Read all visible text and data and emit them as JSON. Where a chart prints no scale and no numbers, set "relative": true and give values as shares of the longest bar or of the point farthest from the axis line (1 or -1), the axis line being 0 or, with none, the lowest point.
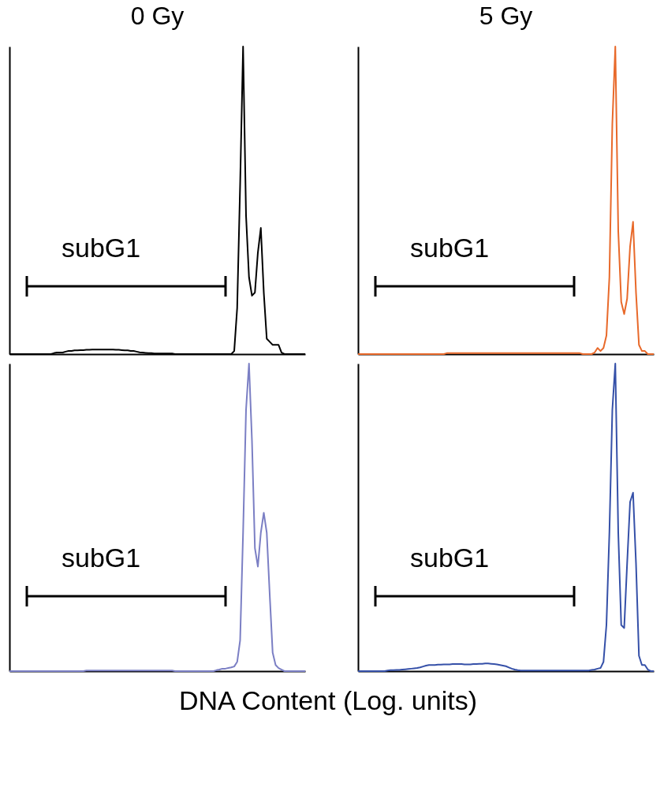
{
  "chart_data": [
    {
      "type": "line",
      "title": "0 Gy",
      "relative": true,
      "tick_labels": false,
      "annotations": [
        "subG1"
      ],
      "categories": [
        null,
        null,
        null,
        null,
        null,
        null,
        null,
        null,
        null,
        null,
        null,
        null,
        null,
        null,
        null,
        null,
        null,
        null,
        null,
        null,
        null,
        null,
        null,
        null,
        null,
        null,
        null,
        null,
        null,
        null,
        null,
        null,
        null,
        null,
        null,
        null,
        null,
        null,
        null,
        null,
        null,
        null,
        null,
        null,
        null,
        null,
        null,
        null,
        null,
        null,
        null,
        null,
        null,
        null,
        null,
        null,
        null,
        null,
        null,
        null,
        null,
        null,
        null,
        null,
        null,
        null,
        null,
        null,
        null,
        null,
        null,
        null,
        null,
        null,
        null,
        null,
        null,
        null,
        null,
        null,
        null,
        null,
        null,
        null,
        null,
        null,
        null,
        null,
        null,
        null,
        null,
        null,
        null,
        null,
        null,
        null,
        null,
        null,
        null,
        null,
        null
      ],
      "series": [
        {
          "color": "#000000",
          "values": [
            0,
            0,
            0,
            0,
            0,
            0,
            0,
            0,
            0,
            0,
            0,
            0,
            0,
            0,
            0,
            0.003,
            0.005,
            0.005,
            0.005,
            0.008,
            0.01,
            0.01,
            0.012,
            0.012,
            0.013,
            0.013,
            0.014,
            0.014,
            0.015,
            0.015,
            0.015,
            0.015,
            0.015,
            0.015,
            0.015,
            0.015,
            0.014,
            0.014,
            0.013,
            0.012,
            0.012,
            0.01,
            0.01,
            0.008,
            0.006,
            0.005,
            0.004,
            0.003,
            0.003,
            0.002,
            0.002,
            0.002,
            0.002,
            0.002,
            0.002,
            0.002,
            0,
            0,
            0,
            0,
            0,
            0,
            0,
            0,
            0,
            0,
            0,
            0,
            0,
            0,
            0,
            0,
            0,
            0,
            0,
            0,
            0.01,
            0.15,
            0.55,
            1,
            0.45,
            0.25,
            0.19,
            0.2,
            0.33,
            0.41,
            0.2,
            0.05,
            0.04,
            0.03,
            0.03,
            0.03,
            0.005,
            0,
            0,
            0,
            0,
            0,
            0,
            0,
            0
          ]
        }
      ]
    },
    {
      "type": "line",
      "title": "5 Gy",
      "relative": true,
      "tick_labels": false,
      "annotations": [
        "subG1"
      ],
      "categories": [
        null,
        null,
        null,
        null,
        null,
        null,
        null,
        null,
        null,
        null,
        null,
        null,
        null,
        null,
        null,
        null,
        null,
        null,
        null,
        null,
        null,
        null,
        null,
        null,
        null,
        null,
        null,
        null,
        null,
        null,
        null,
        null,
        null,
        null,
        null,
        null,
        null,
        null,
        null,
        null,
        null,
        null,
        null,
        null,
        null,
        null,
        null,
        null,
        null,
        null,
        null,
        null,
        null,
        null,
        null,
        null,
        null,
        null,
        null,
        null,
        null,
        null,
        null,
        null,
        null,
        null,
        null,
        null,
        null,
        null,
        null,
        null,
        null,
        null,
        null,
        null,
        null,
        null,
        null,
        null,
        null,
        null,
        null,
        null,
        null,
        null,
        null,
        null,
        null,
        null,
        null,
        null,
        null,
        null,
        null,
        null,
        null,
        null,
        null,
        null,
        null
      ],
      "series": [
        {
          "color": "#e8692a",
          "values": [
            0,
            0,
            0,
            0,
            0,
            0,
            0,
            0,
            0,
            0,
            0,
            0,
            0,
            0,
            0,
            0,
            0,
            0,
            0,
            0,
            0,
            0,
            0,
            0,
            0,
            0,
            0,
            0,
            0,
            0,
            0.003,
            0.003,
            0.003,
            0.003,
            0.003,
            0.003,
            0.003,
            0.003,
            0.003,
            0.003,
            0.003,
            0.003,
            0.003,
            0.003,
            0.003,
            0.003,
            0.003,
            0.003,
            0.003,
            0.003,
            0.003,
            0.003,
            0.003,
            0.003,
            0.003,
            0.003,
            0.003,
            0.003,
            0.003,
            0.003,
            0.003,
            0.003,
            0.003,
            0.003,
            0.003,
            0.003,
            0.003,
            0.003,
            0.003,
            0.003,
            0.003,
            0.003,
            0.003,
            0.003,
            0.003,
            0.003,
            0,
            0,
            0,
            0,
            0.005,
            0.02,
            0.01,
            0.02,
            0.06,
            0.25,
            0.75,
            1,
            0.4,
            0.17,
            0.13,
            0.18,
            0.35,
            0.43,
            0.2,
            0.03,
            0.01,
            0.01,
            0,
            0,
            0
          ]
        }
      ]
    },
    {
      "type": "line",
      "relative": true,
      "tick_labels": false,
      "annotations": [
        "subG1"
      ],
      "xlabel": "DNA Content (Log. units)",
      "categories": [
        null,
        null,
        null,
        null,
        null,
        null,
        null,
        null,
        null,
        null,
        null,
        null,
        null,
        null,
        null,
        null,
        null,
        null,
        null,
        null,
        null,
        null,
        null,
        null,
        null,
        null,
        null,
        null,
        null,
        null,
        null,
        null,
        null,
        null,
        null,
        null,
        null,
        null,
        null,
        null,
        null,
        null,
        null,
        null,
        null,
        null,
        null,
        null,
        null,
        null,
        null,
        null,
        null,
        null,
        null,
        null,
        null,
        null,
        null,
        null,
        null,
        null,
        null,
        null,
        null,
        null,
        null,
        null,
        null,
        null,
        null,
        null,
        null,
        null,
        null,
        null,
        null,
        null,
        null,
        null,
        null,
        null,
        null,
        null,
        null,
        null,
        null,
        null,
        null,
        null,
        null,
        null,
        null,
        null,
        null,
        null,
        null,
        null,
        null,
        null,
        null
      ],
      "series": [
        {
          "color": "#7b7fc4",
          "values": [
            0,
            0,
            0,
            0,
            0,
            0,
            0,
            0,
            0,
            0,
            0,
            0,
            0,
            0,
            0,
            0,
            0,
            0,
            0,
            0,
            0,
            0,
            0,
            0,
            0,
            0,
            0.002,
            0.002,
            0.002,
            0.002,
            0.002,
            0.002,
            0.002,
            0.002,
            0.002,
            0.002,
            0.002,
            0.002,
            0.002,
            0.002,
            0.002,
            0.002,
            0.002,
            0.002,
            0.002,
            0.002,
            0.002,
            0.002,
            0.002,
            0.002,
            0.002,
            0.002,
            0.002,
            0.002,
            0.002,
            0.002,
            0,
            0,
            0,
            0,
            0,
            0,
            0,
            0,
            0,
            0,
            0,
            0,
            0,
            0,
            0.003,
            0.005,
            0.008,
            0.008,
            0.01,
            0.012,
            0.015,
            0.03,
            0.1,
            0.45,
            0.85,
            1,
            0.75,
            0.4,
            0.34,
            0.45,
            0.515,
            0.45,
            0.25,
            0.06,
            0.02,
            0.01,
            0.005,
            0,
            0,
            0,
            0,
            0,
            0,
            0,
            0
          ]
        }
      ]
    },
    {
      "type": "line",
      "relative": true,
      "tick_labels": false,
      "annotations": [
        "subG1"
      ],
      "categories": [
        null,
        null,
        null,
        null,
        null,
        null,
        null,
        null,
        null,
        null,
        null,
        null,
        null,
        null,
        null,
        null,
        null,
        null,
        null,
        null,
        null,
        null,
        null,
        null,
        null,
        null,
        null,
        null,
        null,
        null,
        null,
        null,
        null,
        null,
        null,
        null,
        null,
        null,
        null,
        null,
        null,
        null,
        null,
        null,
        null,
        null,
        null,
        null,
        null,
        null,
        null,
        null,
        null,
        null,
        null,
        null,
        null,
        null,
        null,
        null,
        null,
        null,
        null,
        null,
        null,
        null,
        null,
        null,
        null,
        null,
        null,
        null,
        null,
        null,
        null,
        null,
        null,
        null,
        null,
        null,
        null,
        null,
        null,
        null,
        null,
        null,
        null,
        null,
        null,
        null,
        null,
        null,
        null,
        null,
        null,
        null,
        null,
        null,
        null,
        null,
        null
      ],
      "series": [
        {
          "color": "#3550a8",
          "values": [
            0,
            0,
            0,
            0,
            0,
            0,
            0,
            0,
            0,
            0,
            0.002,
            0.003,
            0.003,
            0.004,
            0.004,
            0.005,
            0.006,
            0.007,
            0.008,
            0.009,
            0.01,
            0.012,
            0.015,
            0.018,
            0.02,
            0.02,
            0.02,
            0.021,
            0.021,
            0.022,
            0.022,
            0.022,
            0.023,
            0.023,
            0.023,
            0.023,
            0.022,
            0.022,
            0.022,
            0.023,
            0.023,
            0.024,
            0.024,
            0.025,
            0.025,
            0.024,
            0.023,
            0.022,
            0.02,
            0.018,
            0.016,
            0.012,
            0.008,
            0.005,
            0.003,
            0.002,
            0.002,
            0.002,
            0.002,
            0.002,
            0.002,
            0.002,
            0.002,
            0.002,
            0.002,
            0.002,
            0.002,
            0.002,
            0.002,
            0.002,
            0.002,
            0.002,
            0.002,
            0.002,
            0.002,
            0.002,
            0.002,
            0.002,
            0.002,
            0.004,
            0.005,
            0.008,
            0.01,
            0.03,
            0.15,
            0.45,
            0.85,
            1,
            0.45,
            0.15,
            0.14,
            0.35,
            0.55,
            0.58,
            0.35,
            0.05,
            0.02,
            0.02,
            0.005,
            0,
            0
          ]
        }
      ]
    }
  ]
}
